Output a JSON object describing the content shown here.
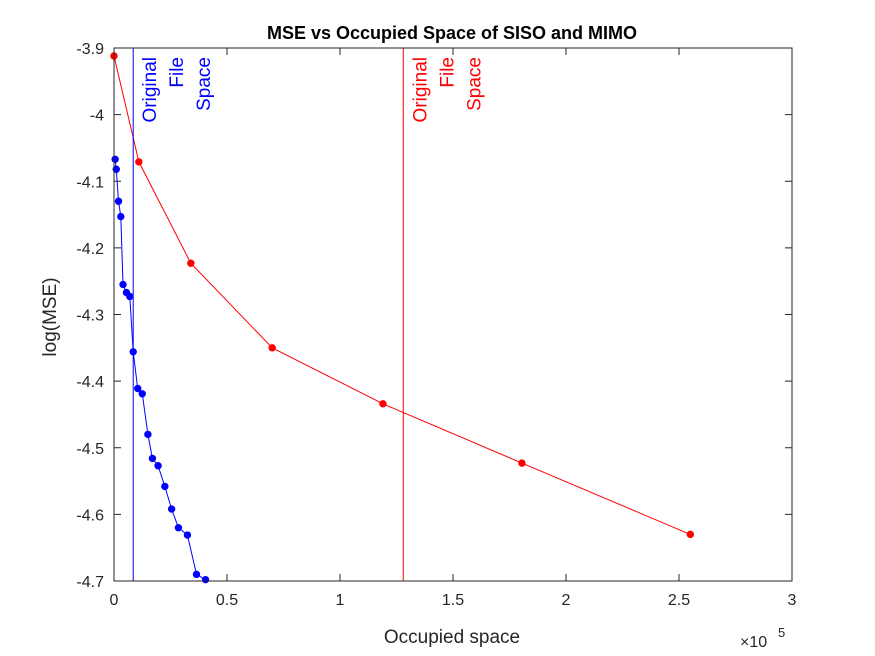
{
  "chart_data": {
    "type": "line",
    "title": "MSE vs Occupied Space of SISO and MIMO",
    "xlabel": "Occupied space",
    "ylabel": "log(MSE)",
    "x_exponent_label": "×10",
    "x_exponent_power": "5",
    "xlim": [
      0,
      300000
    ],
    "ylim": [
      -4.7,
      -3.9
    ],
    "x_ticks": [
      0,
      50000,
      100000,
      150000,
      200000,
      250000,
      300000
    ],
    "x_tick_labels": [
      "0",
      "0.5",
      "1",
      "1.5",
      "2",
      "2.5",
      "3"
    ],
    "y_ticks": [
      -3.9,
      -4.0,
      -4.1,
      -4.2,
      -4.3,
      -4.4,
      -4.5,
      -4.6,
      -4.7
    ],
    "y_tick_labels": [
      "-3.9",
      "-4",
      "-4.1",
      "-4.2",
      "-4.3",
      "-4.4",
      "-4.5",
      "-4.6",
      "-4.7"
    ],
    "grid": false,
    "series": [
      {
        "color": "#0000ff",
        "x": [
          500,
          1000,
          2000,
          3000,
          4000,
          5500,
          7000,
          8500,
          10500,
          12500,
          15000,
          17000,
          19500,
          22500,
          25500,
          28500,
          32500,
          36500,
          40500
        ],
        "y": [
          -4.067,
          -4.082,
          -4.13,
          -4.153,
          -4.255,
          -4.267,
          -4.273,
          -4.356,
          -4.411,
          -4.419,
          -4.48,
          -4.516,
          -4.527,
          -4.558,
          -4.592,
          -4.62,
          -4.631,
          -4.69,
          -4.698
        ]
      },
      {
        "color": "#ff0000",
        "x": [
          0,
          11000,
          34000,
          70000,
          119000,
          180500,
          255000
        ],
        "y": [
          -3.912,
          -4.071,
          -4.223,
          -4.35,
          -4.434,
          -4.523,
          -4.63
        ]
      }
    ],
    "vertical_lines": [
      {
        "x": 8500,
        "color": "#0000ff",
        "label_lines": [
          "Original",
          "File",
          "Space"
        ]
      },
      {
        "x": 128000,
        "color": "#ff0000",
        "label_lines": [
          "Original",
          "File",
          "Space"
        ]
      }
    ]
  }
}
